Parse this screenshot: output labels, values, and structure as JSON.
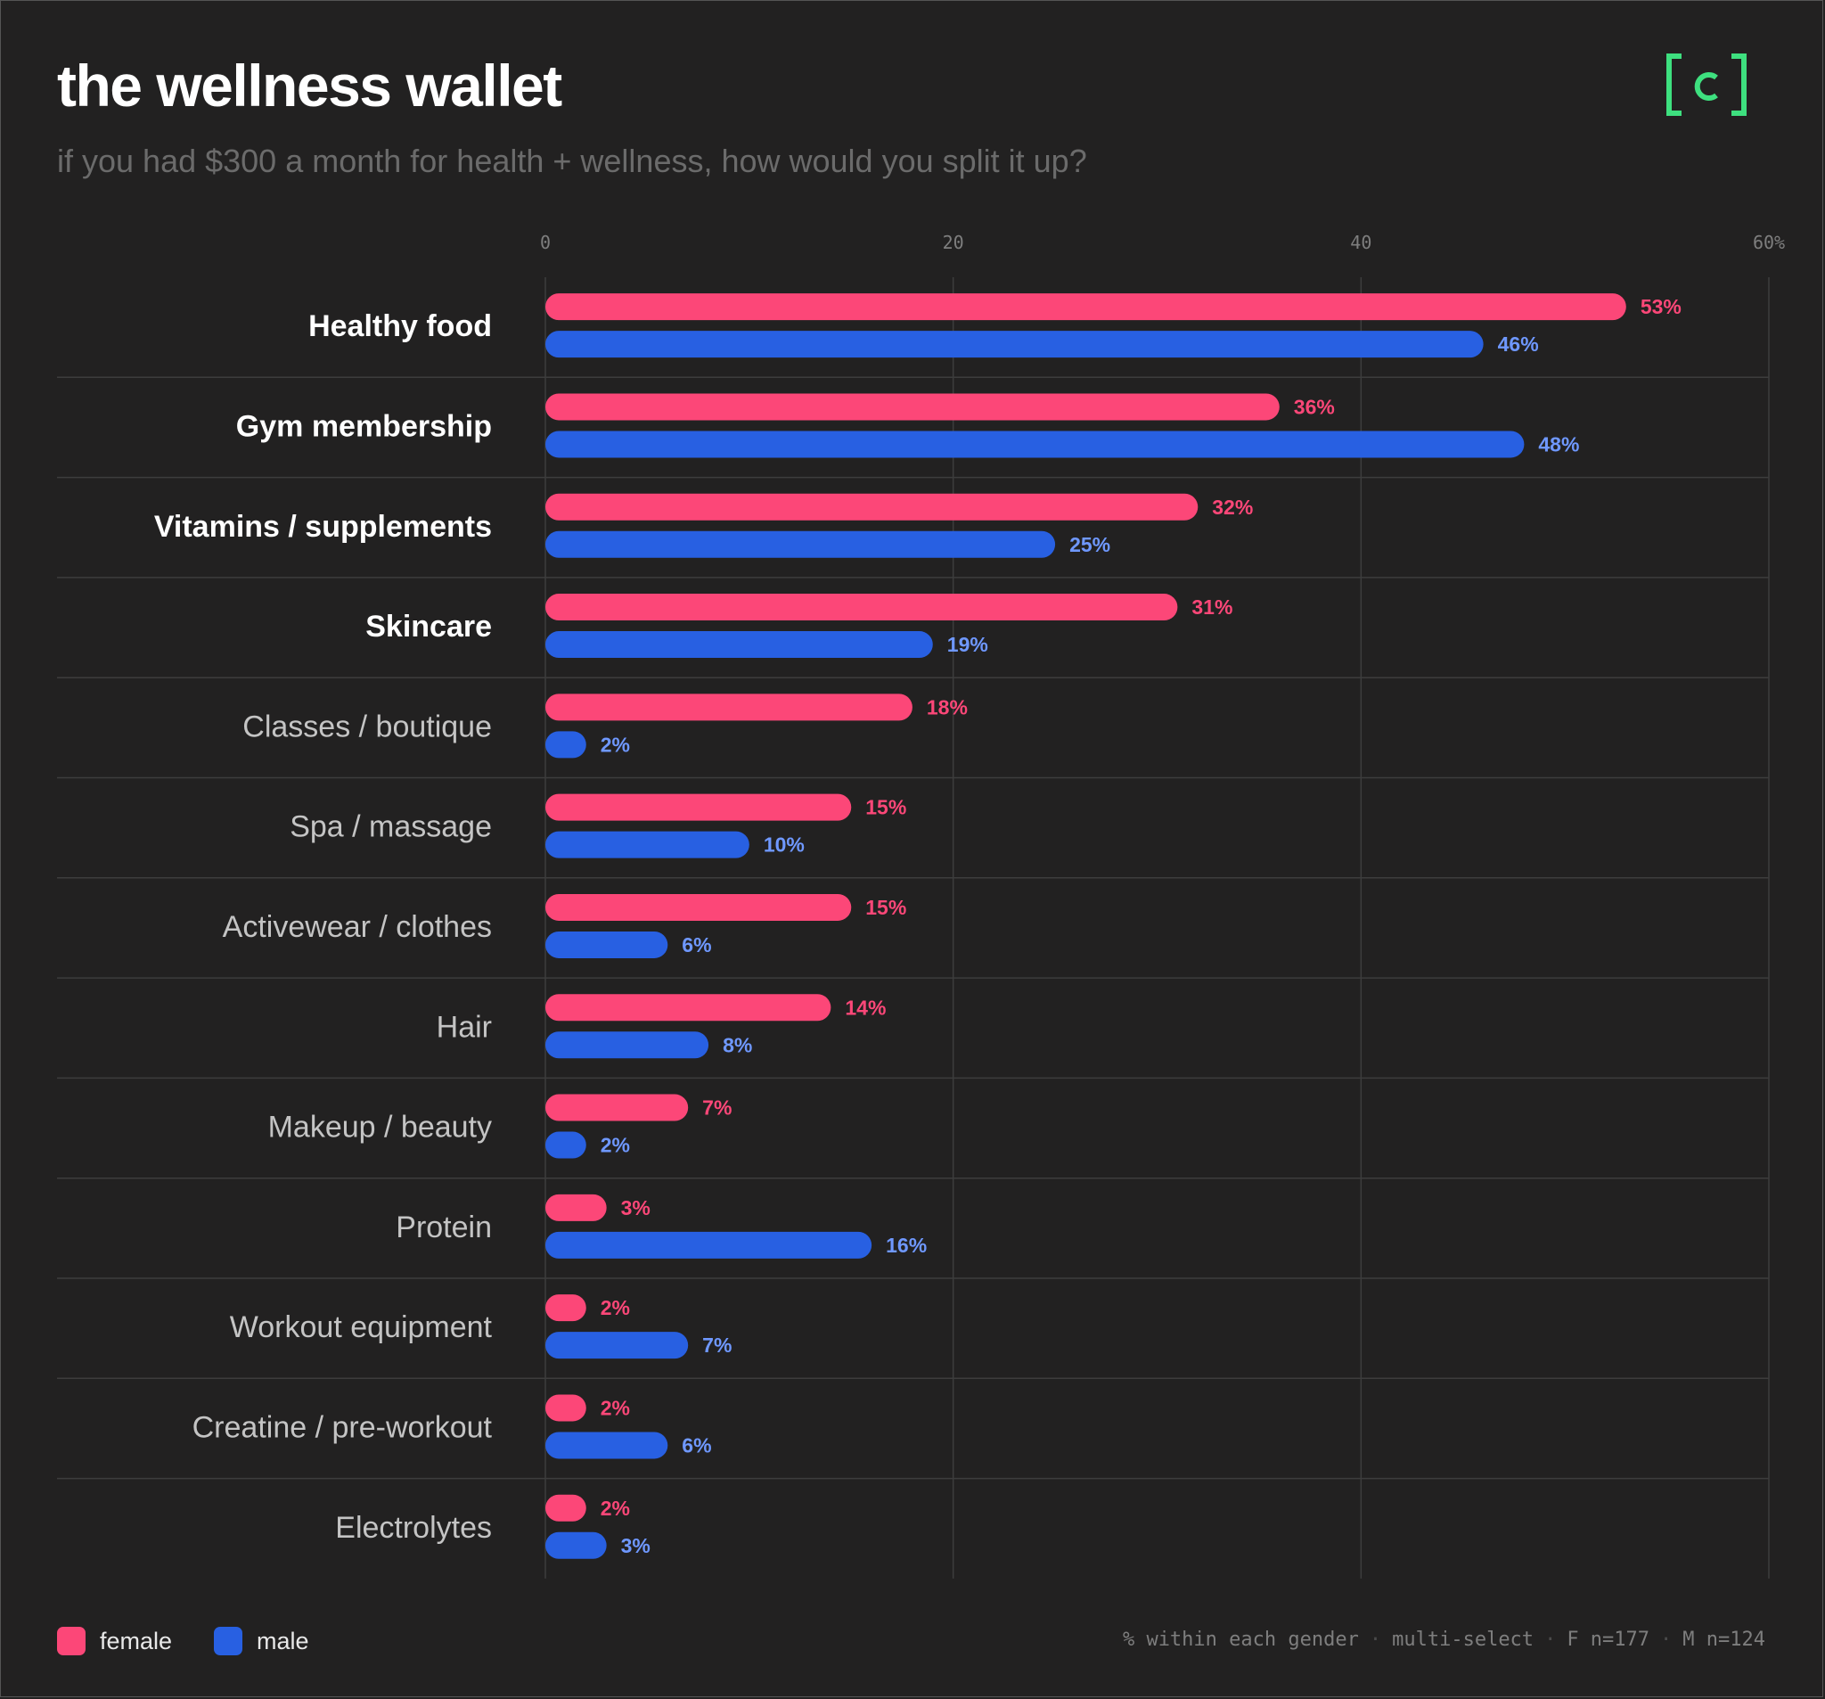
{
  "header": {
    "title": "the wellness wallet",
    "subtitle": "if you had $300 a month for health + wellness, how would you split it up?",
    "logo_text": "[c]"
  },
  "colors": {
    "background": "#222121",
    "female": "#fc4778",
    "male": "#2860e2",
    "male_label": "#6f98ff",
    "logo": "#3ee07f",
    "grid": "#3d3d3d"
  },
  "chart_data": {
    "type": "bar",
    "orientation": "horizontal",
    "title": "the wellness wallet",
    "subtitle": "if you had $300 a month for health + wellness, how would you split it up?",
    "xlim": [
      0,
      60
    ],
    "x_ticks": [
      "0",
      "20",
      "40",
      "60%"
    ],
    "x_tick_values": [
      0,
      20,
      40,
      60
    ],
    "grid": true,
    "legend_position": "bottom-left",
    "categories": [
      "Healthy food",
      "Gym membership",
      "Vitamins / supplements",
      "Skincare",
      "Classes / boutique",
      "Spa / massage",
      "Activewear / clothes",
      "Hair",
      "Makeup / beauty",
      "Protein",
      "Workout equipment",
      "Creatine / pre-workout",
      "Electrolytes"
    ],
    "highlighted_categories": [
      "Healthy food",
      "Gym membership",
      "Vitamins / supplements",
      "Skincare"
    ],
    "series": [
      {
        "name": "female",
        "color": "#fc4778",
        "values": [
          53,
          36,
          32,
          31,
          18,
          15,
          15,
          14,
          7,
          3,
          2,
          2,
          2
        ],
        "labels": [
          "53%",
          "36%",
          "32%",
          "31%",
          "18%",
          "15%",
          "15%",
          "14%",
          "7%",
          "3%",
          "2%",
          "2%",
          "2%"
        ]
      },
      {
        "name": "male",
        "color": "#2860e2",
        "values": [
          46,
          48,
          25,
          19,
          2,
          10,
          6,
          8,
          2,
          16,
          7,
          6,
          3
        ],
        "labels": [
          "46%",
          "48%",
          "25%",
          "19%",
          "2%",
          "10%",
          "6%",
          "8%",
          "2%",
          "16%",
          "7%",
          "6%",
          "3%"
        ]
      }
    ]
  },
  "legend": {
    "female_label": "female",
    "male_label": "male"
  },
  "footnote": {
    "items": [
      "% within each gender",
      "multi-select",
      "F n=177",
      "M n=124"
    ],
    "separator": "·"
  }
}
